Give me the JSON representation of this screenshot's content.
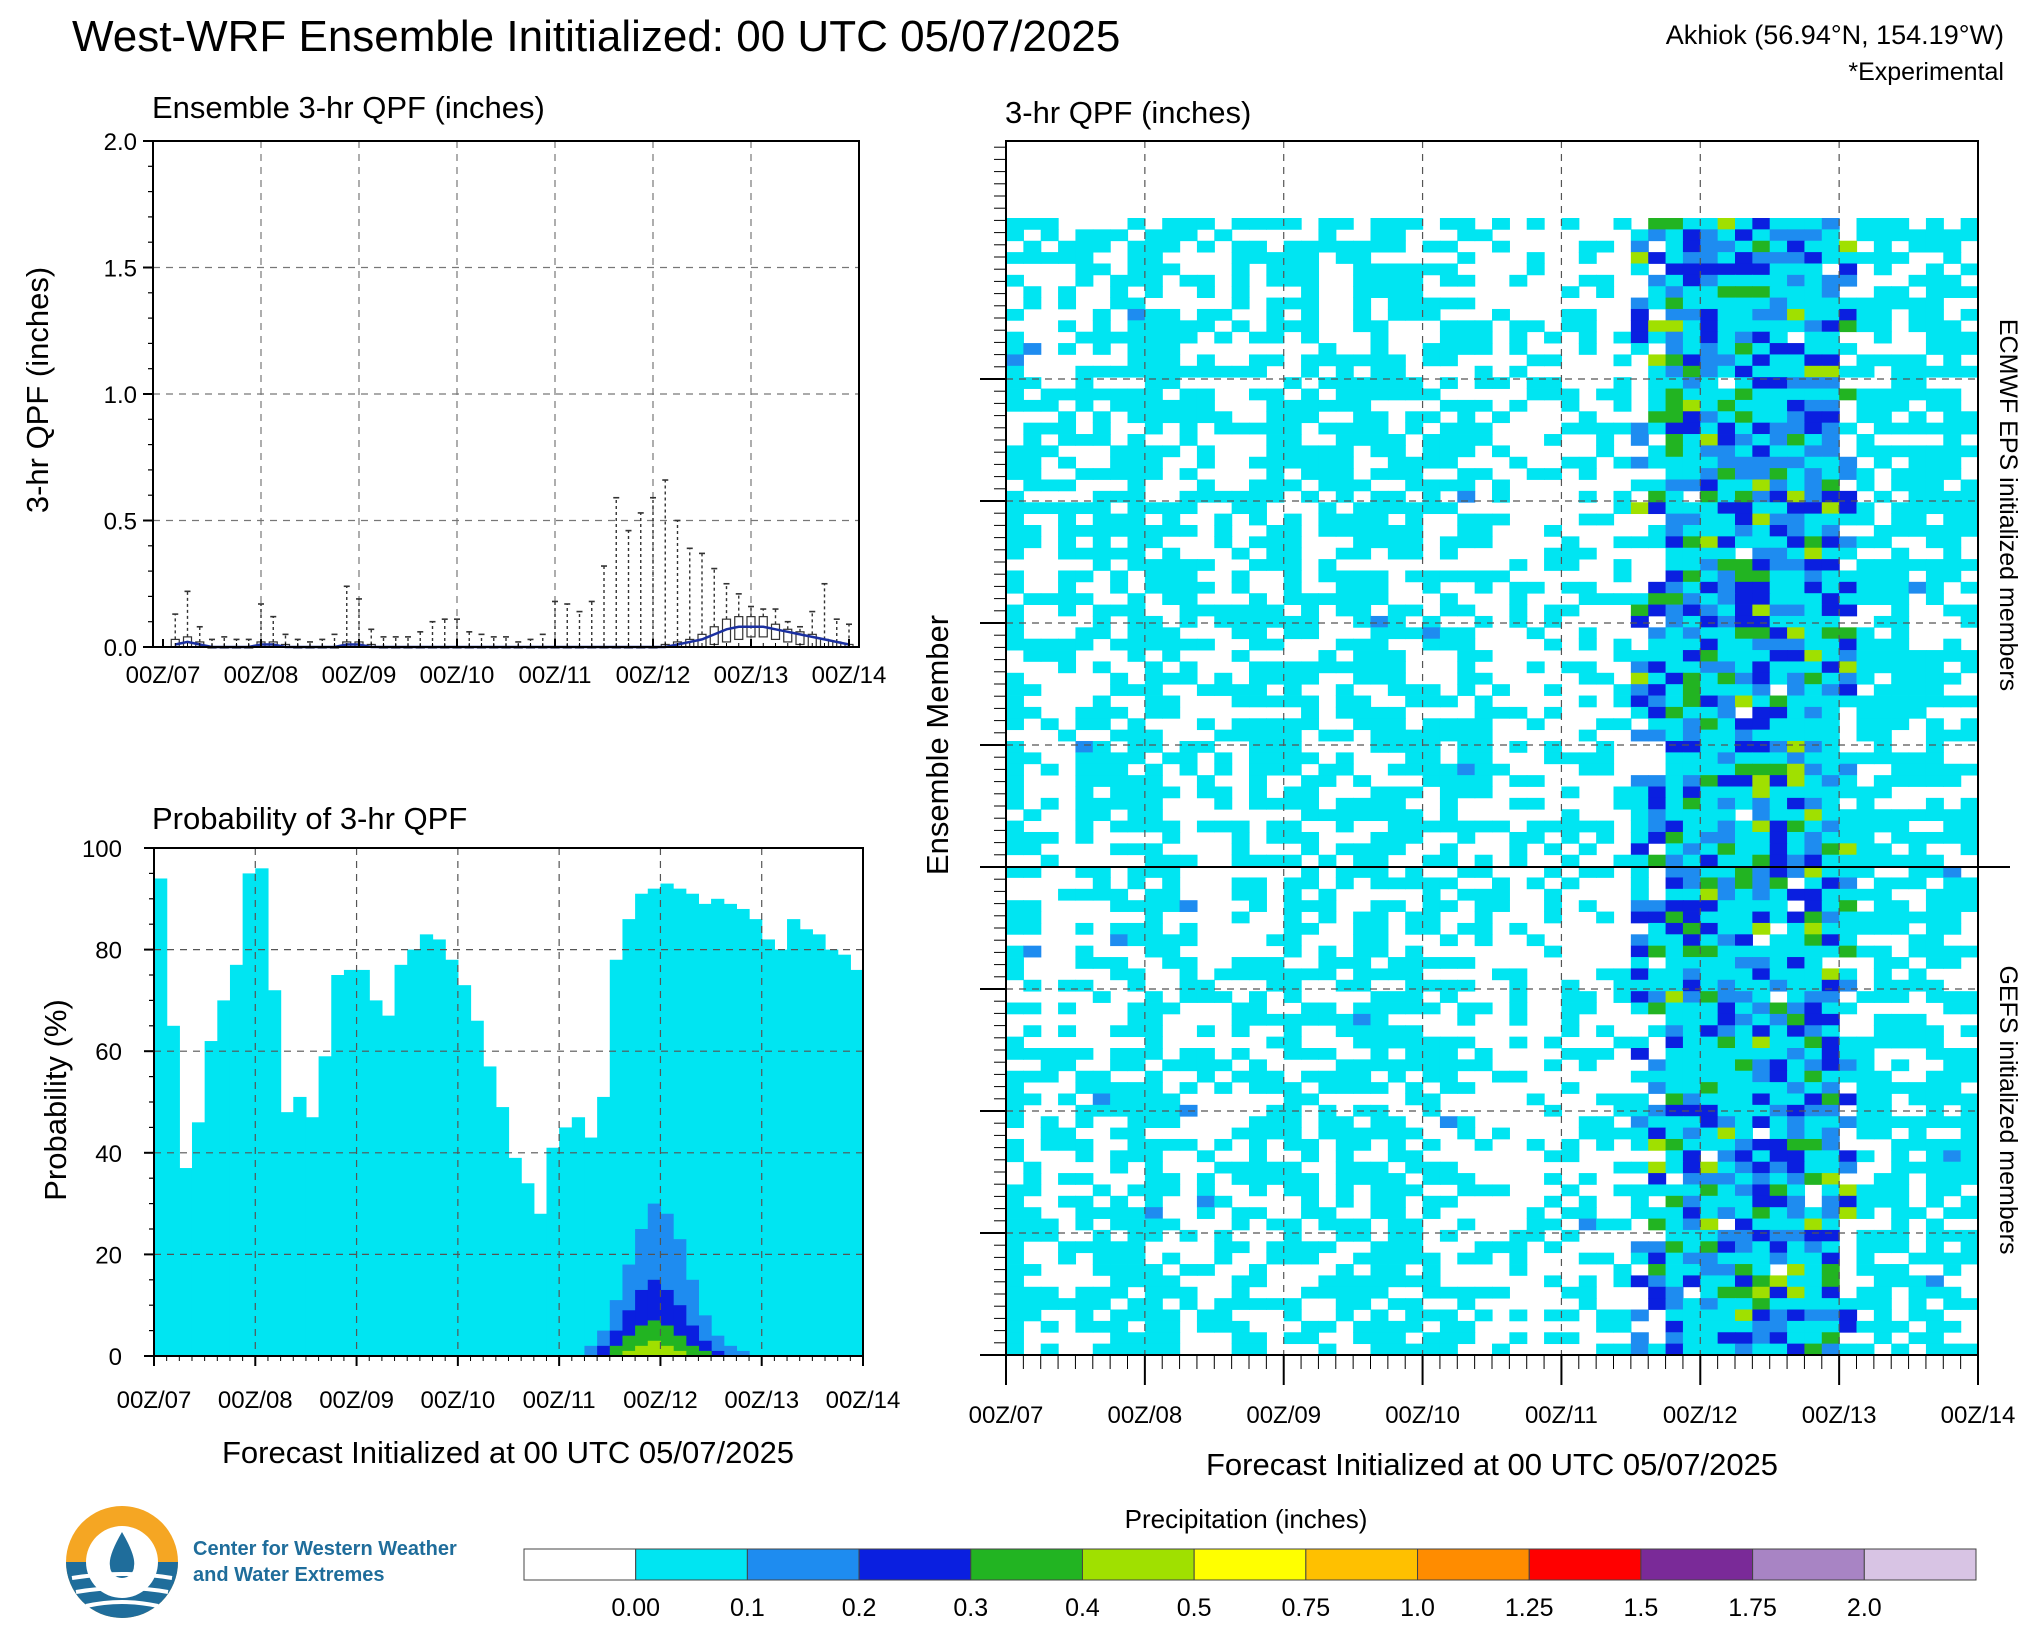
{
  "header": {
    "title": "West-WRF Ensemble Inititialized: 00 UTC 05/07/2025",
    "location": "Akhiok (56.94°N, 154.19°W)",
    "experimental": "*Experimental"
  },
  "colors": {
    "cyan": "#00e5f2",
    "blue1": "#1e8cf0",
    "blue2": "#0a1fe0",
    "green": "#22b422",
    "lime": "#a0e000",
    "box": "#333333",
    "median": "#1a2fa0"
  },
  "time_labels": [
    "00Z/07",
    "00Z/08",
    "00Z/09",
    "00Z/10",
    "00Z/11",
    "00Z/12",
    "00Z/13",
    "00Z/14"
  ],
  "chart_data": [
    {
      "type": "box",
      "title": "Ensemble 3-hr QPF (inches)",
      "ylabel": "3-hr QPF (inches)",
      "ylim": [
        0,
        2.0
      ],
      "yticks": [
        "0.0",
        "0.5",
        "1.0",
        "1.5",
        "2.0"
      ],
      "x": [
        3,
        6,
        9,
        12,
        15,
        18,
        21,
        24,
        27,
        30,
        33,
        36,
        39,
        42,
        45,
        48,
        51,
        54,
        57,
        60,
        63,
        66,
        69,
        72,
        75,
        78,
        81,
        84,
        87,
        90,
        93,
        96,
        99,
        102,
        105,
        108,
        111,
        114,
        117,
        120,
        123,
        126,
        129,
        132,
        135,
        138,
        141,
        144,
        147,
        150,
        153,
        156,
        159,
        162,
        165,
        168
      ],
      "q1": [
        0,
        0,
        0,
        0,
        0,
        0,
        0,
        0,
        0,
        0,
        0,
        0,
        0,
        0,
        0,
        0,
        0,
        0,
        0,
        0,
        0,
        0,
        0,
        0,
        0,
        0,
        0,
        0,
        0,
        0,
        0,
        0,
        0,
        0,
        0,
        0,
        0,
        0,
        0,
        0,
        0,
        0,
        0,
        0,
        0.01,
        0.02,
        0.03,
        0.04,
        0.04,
        0.03,
        0.02,
        0.01,
        0,
        0,
        0,
        0
      ],
      "median": [
        0.01,
        0.02,
        0.01,
        0,
        0,
        0,
        0,
        0.01,
        0.01,
        0,
        0,
        0,
        0,
        0,
        0.01,
        0.01,
        0,
        0,
        0,
        0,
        0,
        0,
        0,
        0,
        0,
        0,
        0,
        0,
        0,
        0,
        0,
        0,
        0,
        0,
        0,
        0,
        0,
        0,
        0,
        0,
        0,
        0.01,
        0.02,
        0.03,
        0.05,
        0.07,
        0.08,
        0.08,
        0.08,
        0.07,
        0.06,
        0.05,
        0.04,
        0.03,
        0.02,
        0.01
      ],
      "q3": [
        0.03,
        0.04,
        0.02,
        0,
        0,
        0,
        0,
        0.02,
        0.02,
        0.01,
        0,
        0,
        0,
        0,
        0.02,
        0.02,
        0.01,
        0,
        0,
        0,
        0,
        0,
        0,
        0,
        0,
        0,
        0,
        0,
        0,
        0,
        0,
        0,
        0,
        0,
        0,
        0,
        0,
        0,
        0,
        0,
        0.01,
        0.02,
        0.03,
        0.05,
        0.08,
        0.11,
        0.12,
        0.12,
        0.12,
        0.09,
        0.07,
        0.06,
        0.05,
        0.03,
        0.02,
        0.01
      ],
      "max": [
        0.13,
        0.22,
        0.08,
        0.03,
        0.04,
        0.03,
        0.03,
        0.17,
        0.12,
        0.05,
        0.03,
        0.02,
        0.03,
        0.05,
        0.24,
        0.19,
        0.07,
        0.04,
        0.04,
        0.04,
        0.06,
        0.1,
        0.11,
        0.11,
        0.06,
        0.05,
        0.04,
        0.04,
        0.02,
        0.03,
        0.05,
        0.18,
        0.17,
        0.14,
        0.18,
        0.32,
        0.59,
        0.46,
        0.53,
        0.59,
        0.66,
        0.5,
        0.39,
        0.37,
        0.31,
        0.25,
        0.21,
        0.16,
        0.15,
        0.15,
        0.1,
        0.08,
        0.14,
        0.25,
        0.11,
        0.09
      ]
    },
    {
      "type": "area",
      "title": "Probability of 3-hr QPF",
      "xlabel": "Forecast Initialized at 00 UTC 05/07/2025",
      "ylabel": "Probability (%)",
      "ylim": [
        0,
        100
      ],
      "yticks": [
        "0",
        "20",
        "40",
        "60",
        "80",
        "100"
      ],
      "series": [
        {
          "threshold": "0.00",
          "values": [
            94,
            65,
            37,
            46,
            62,
            70,
            77,
            95,
            96,
            72,
            48,
            51,
            47,
            59,
            75,
            76,
            76,
            70,
            67,
            77,
            80,
            83,
            82,
            78,
            73,
            66,
            57,
            49,
            39,
            34,
            28,
            41,
            45,
            47,
            43,
            51,
            78,
            86,
            91,
            92,
            93,
            92,
            91,
            89,
            90,
            89,
            88,
            86,
            82,
            80,
            86,
            84,
            83,
            80,
            79,
            76
          ]
        },
        {
          "threshold": "0.1",
          "values": [
            0,
            0,
            0,
            0,
            0,
            0,
            0,
            0,
            0,
            0,
            0,
            0,
            0,
            0,
            0,
            0,
            0,
            0,
            0,
            0,
            0,
            0,
            0,
            0,
            0,
            0,
            0,
            0,
            0,
            0,
            0,
            0,
            0,
            0,
            2,
            5,
            11,
            18,
            25,
            30,
            28,
            23,
            15,
            8,
            4,
            2,
            1,
            0,
            0,
            0,
            0,
            0,
            0,
            0,
            0,
            0
          ]
        },
        {
          "threshold": "0.2",
          "values": [
            0,
            0,
            0,
            0,
            0,
            0,
            0,
            0,
            0,
            0,
            0,
            0,
            0,
            0,
            0,
            0,
            0,
            0,
            0,
            0,
            0,
            0,
            0,
            0,
            0,
            0,
            0,
            0,
            0,
            0,
            0,
            0,
            0,
            0,
            0,
            2,
            5,
            9,
            13,
            15,
            13,
            10,
            6,
            3,
            1,
            0,
            0,
            0,
            0,
            0,
            0,
            0,
            0,
            0,
            0,
            0
          ]
        },
        {
          "threshold": "0.3",
          "values": [
            0,
            0,
            0,
            0,
            0,
            0,
            0,
            0,
            0,
            0,
            0,
            0,
            0,
            0,
            0,
            0,
            0,
            0,
            0,
            0,
            0,
            0,
            0,
            0,
            0,
            0,
            0,
            0,
            0,
            0,
            0,
            0,
            0,
            0,
            0,
            0,
            2,
            4,
            6,
            7,
            6,
            4,
            2,
            1,
            0,
            0,
            0,
            0,
            0,
            0,
            0,
            0,
            0,
            0,
            0,
            0
          ]
        },
        {
          "threshold": "0.4",
          "values": [
            0,
            0,
            0,
            0,
            0,
            0,
            0,
            0,
            0,
            0,
            0,
            0,
            0,
            0,
            0,
            0,
            0,
            0,
            0,
            0,
            0,
            0,
            0,
            0,
            0,
            0,
            0,
            0,
            0,
            0,
            0,
            0,
            0,
            0,
            0,
            0,
            0,
            1,
            2,
            3,
            2,
            1,
            0,
            0,
            0,
            0,
            0,
            0,
            0,
            0,
            0,
            0,
            0,
            0,
            0,
            0
          ]
        }
      ]
    },
    {
      "type": "heatmap",
      "title": "3-hr QPF (inches)",
      "xlabel": "Forecast Initialized at 00 UTC 05/07/2025",
      "ylabel": "Ensemble Member",
      "groups": [
        "ECMWF EPS initialized members",
        "GEFS initialized members"
      ],
      "members_per_group": 50,
      "time_steps": 56
    }
  ],
  "colorbar": {
    "title": "Precipitation (inches)",
    "labels": [
      "0.00",
      "0.1",
      "0.2",
      "0.3",
      "0.4",
      "0.5",
      "0.75",
      "1.0",
      "1.25",
      "1.5",
      "1.75",
      "2.0"
    ],
    "colors": [
      "#ffffff",
      "#00e5f2",
      "#1e8cf0",
      "#0a1fe0",
      "#22b422",
      "#a0e000",
      "#ffff00",
      "#ffc000",
      "#ff8c00",
      "#ff0000",
      "#7a2a98",
      "#a884c4",
      "#d8c4e4"
    ]
  },
  "logo": {
    "line1": "Center for Western Weather",
    "line2": "and Water Extremes"
  }
}
